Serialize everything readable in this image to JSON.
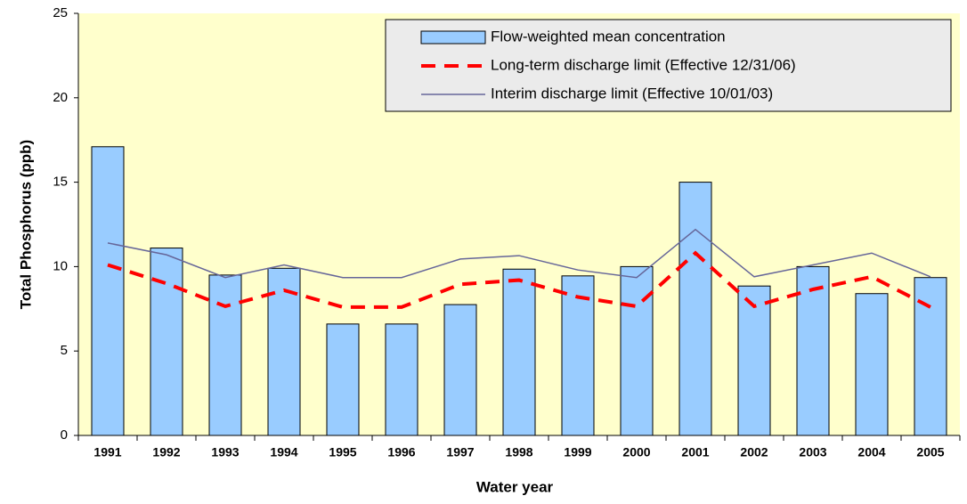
{
  "chart_data": {
    "type": "bar_line",
    "x_label": "Water year",
    "y_label": "Total Phosphorus (ppb)",
    "categories": [
      "1991",
      "1992",
      "1993",
      "1994",
      "1995",
      "1996",
      "1997",
      "1998",
      "1999",
      "2000",
      "2001",
      "2002",
      "2003",
      "2004",
      "2005"
    ],
    "series": [
      {
        "name": "Flow-weighted mean concentration",
        "kind": "bar",
        "color": "#99ccff",
        "values": [
          17.1,
          11.1,
          9.5,
          9.9,
          6.6,
          6.6,
          7.75,
          9.85,
          9.45,
          10.0,
          15.0,
          8.85,
          10.0,
          8.4,
          9.35
        ]
      },
      {
        "name": "Long-term discharge limit (Effective 12/31/06)",
        "kind": "dashed-line",
        "color": "#ff0000",
        "values": [
          10.1,
          9.0,
          7.65,
          8.6,
          7.6,
          7.6,
          8.95,
          9.2,
          8.2,
          7.65,
          10.8,
          7.65,
          8.65,
          9.4,
          7.6
        ]
      },
      {
        "name": "Interim discharge limit (Effective 10/01/03)",
        "kind": "line",
        "color": "#666699",
        "values": [
          11.4,
          10.7,
          9.35,
          10.1,
          9.35,
          9.35,
          10.45,
          10.65,
          9.8,
          9.35,
          12.2,
          9.4,
          10.1,
          10.8,
          9.4
        ]
      }
    ],
    "ylim": [
      0,
      25
    ],
    "yticks": [
      0,
      5,
      10,
      15,
      20,
      25
    ],
    "legend": "top-right",
    "plot_background": "#ffffcc"
  }
}
